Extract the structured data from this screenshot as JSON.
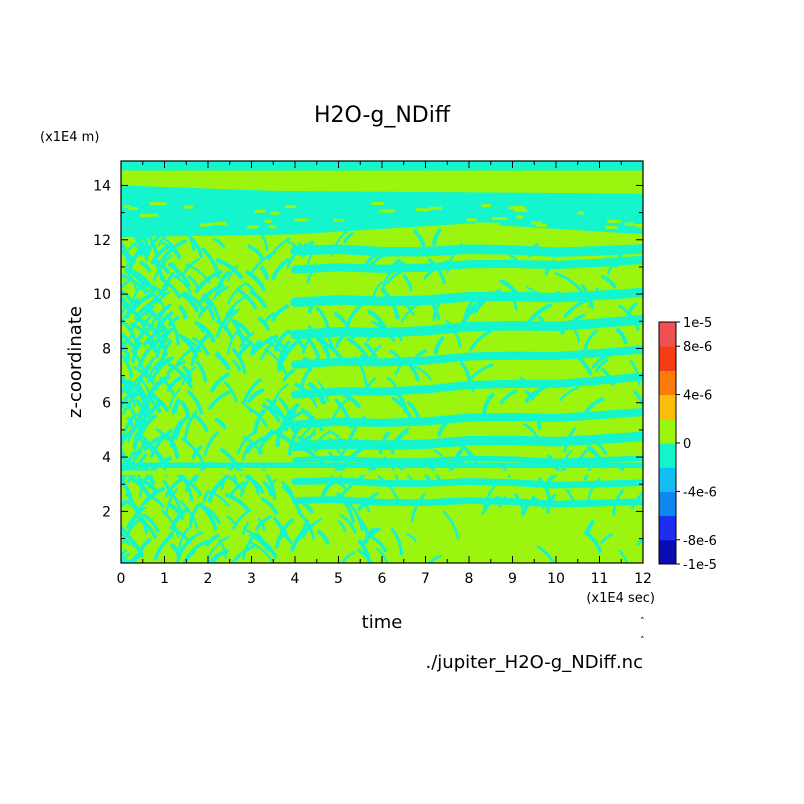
{
  "chart_data": {
    "type": "heatmap",
    "title": "H2O-g_NDiff",
    "xlabel": "time",
    "ylabel": "z-coordinate",
    "x_unit": "(x1E4 sec)",
    "y_unit": "(x1E4 m)",
    "source_file": "./jupiter_H2O-g_NDiff.nc",
    "xlim": [
      0,
      12
    ],
    "ylim": [
      0.1,
      14.9
    ],
    "x_ticks": [
      "0",
      "1",
      "2",
      "3",
      "4",
      "5",
      "6",
      "7",
      "8",
      "9",
      "10",
      "11",
      "12"
    ],
    "y_ticks": [
      "2",
      "4",
      "6",
      "8",
      "10",
      "12",
      "14"
    ],
    "grid": false,
    "colorbar": {
      "range": [
        -1e-05,
        1e-05
      ],
      "levels": 10,
      "colors": [
        "#0b0bb4",
        "#1e2df0",
        "#0f87f0",
        "#12bef5",
        "#14f5cd",
        "#9bf50f",
        "#fabe0a",
        "#fa7d08",
        "#f53c14",
        "#f05050"
      ],
      "labels": [
        "1e-5",
        "8e-6",
        "4e-6",
        "0",
        "-4e-6",
        "-8e-6",
        "-1e-5"
      ],
      "label_values": [
        1e-05,
        8e-06,
        4e-06,
        0,
        -4e-06,
        -8e-06,
        -1e-05
      ]
    },
    "dominant_levels": {
      "slightly_negative_color": "#14f5cd",
      "slightly_positive_color": "#9bf50f"
    }
  }
}
